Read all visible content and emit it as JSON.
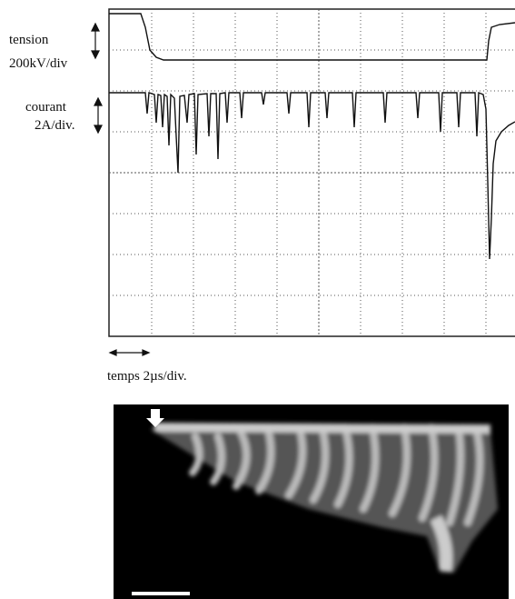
{
  "labels": {
    "voltage": "tension",
    "voltage_scale": "200kV/div",
    "current": "courant",
    "current_scale": "2A/div.",
    "time": "temps 2µs/div."
  }
}
